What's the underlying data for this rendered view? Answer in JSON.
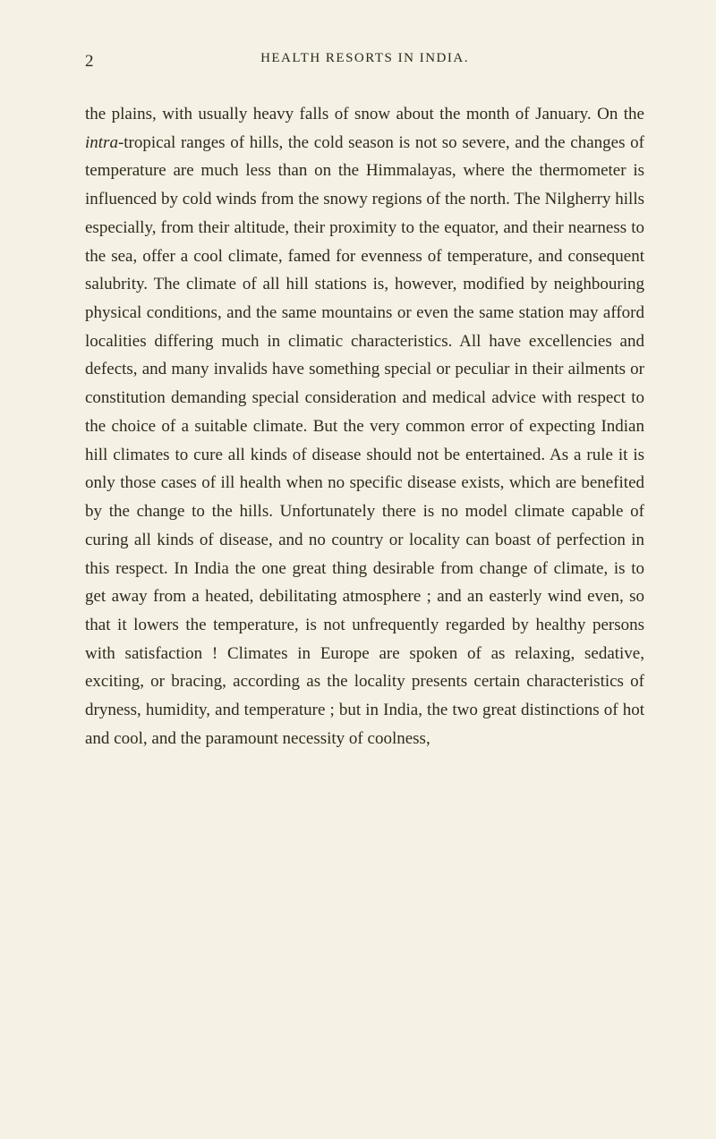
{
  "page": {
    "number": "2",
    "runningHeader": "HEALTH RESORTS IN INDIA.",
    "paragraph_part1": "the plains, with usually heavy falls of snow about the month of January. On the ",
    "paragraph_italic": "intra",
    "paragraph_part2": "-tropical ranges of hills, the cold season is not so severe, and the changes of temperature are much less than on the Himmalayas, where the thermometer is influenced by cold winds from the snowy regions of the north. The Nilgherry hills especially, from their altitude, their proximity to the equator, and their nearness to the sea, offer a cool climate, famed for evenness of temperature, and consequent salubrity. The climate of all hill stations is, however, modified by neighbouring physical conditions, and the same mountains or even the same station may afford localities differing much in climatic characteristics. All have excellencies and defects, and many invalids have something special or peculiar in their ailments or constitution demanding special consideration and medical advice with respect to the choice of a suitable climate. But the very common error of expecting Indian hill climates to cure all kinds of disease should not be entertained. As a rule it is only those cases of ill health when no specific disease exists, which are benefited by the change to the hills. Unfortunately there is no model climate capable of curing all kinds of disease, and no country or locality can boast of perfection in this respect. In India the one great thing desirable from change of climate, is to get away from a heated, debilitating atmosphere ; and an easterly wind even, so that it lowers the temperature, is not unfrequently regarded by healthy persons with satisfaction ! Climates in Europe are spoken of as relaxing, sedative, exciting, or bracing, according as the locality presents certain characteristics of dryness, humidity, and temperature ; but in India, the two great distinctions of hot and cool, and the paramount necessity of coolness,"
  },
  "styles": {
    "backgroundColor": "#f5f1e4",
    "textColor": "#2e2a1c",
    "bodyFontSize": 19,
    "headerFontSize": 15,
    "lineHeight": 1.67
  }
}
